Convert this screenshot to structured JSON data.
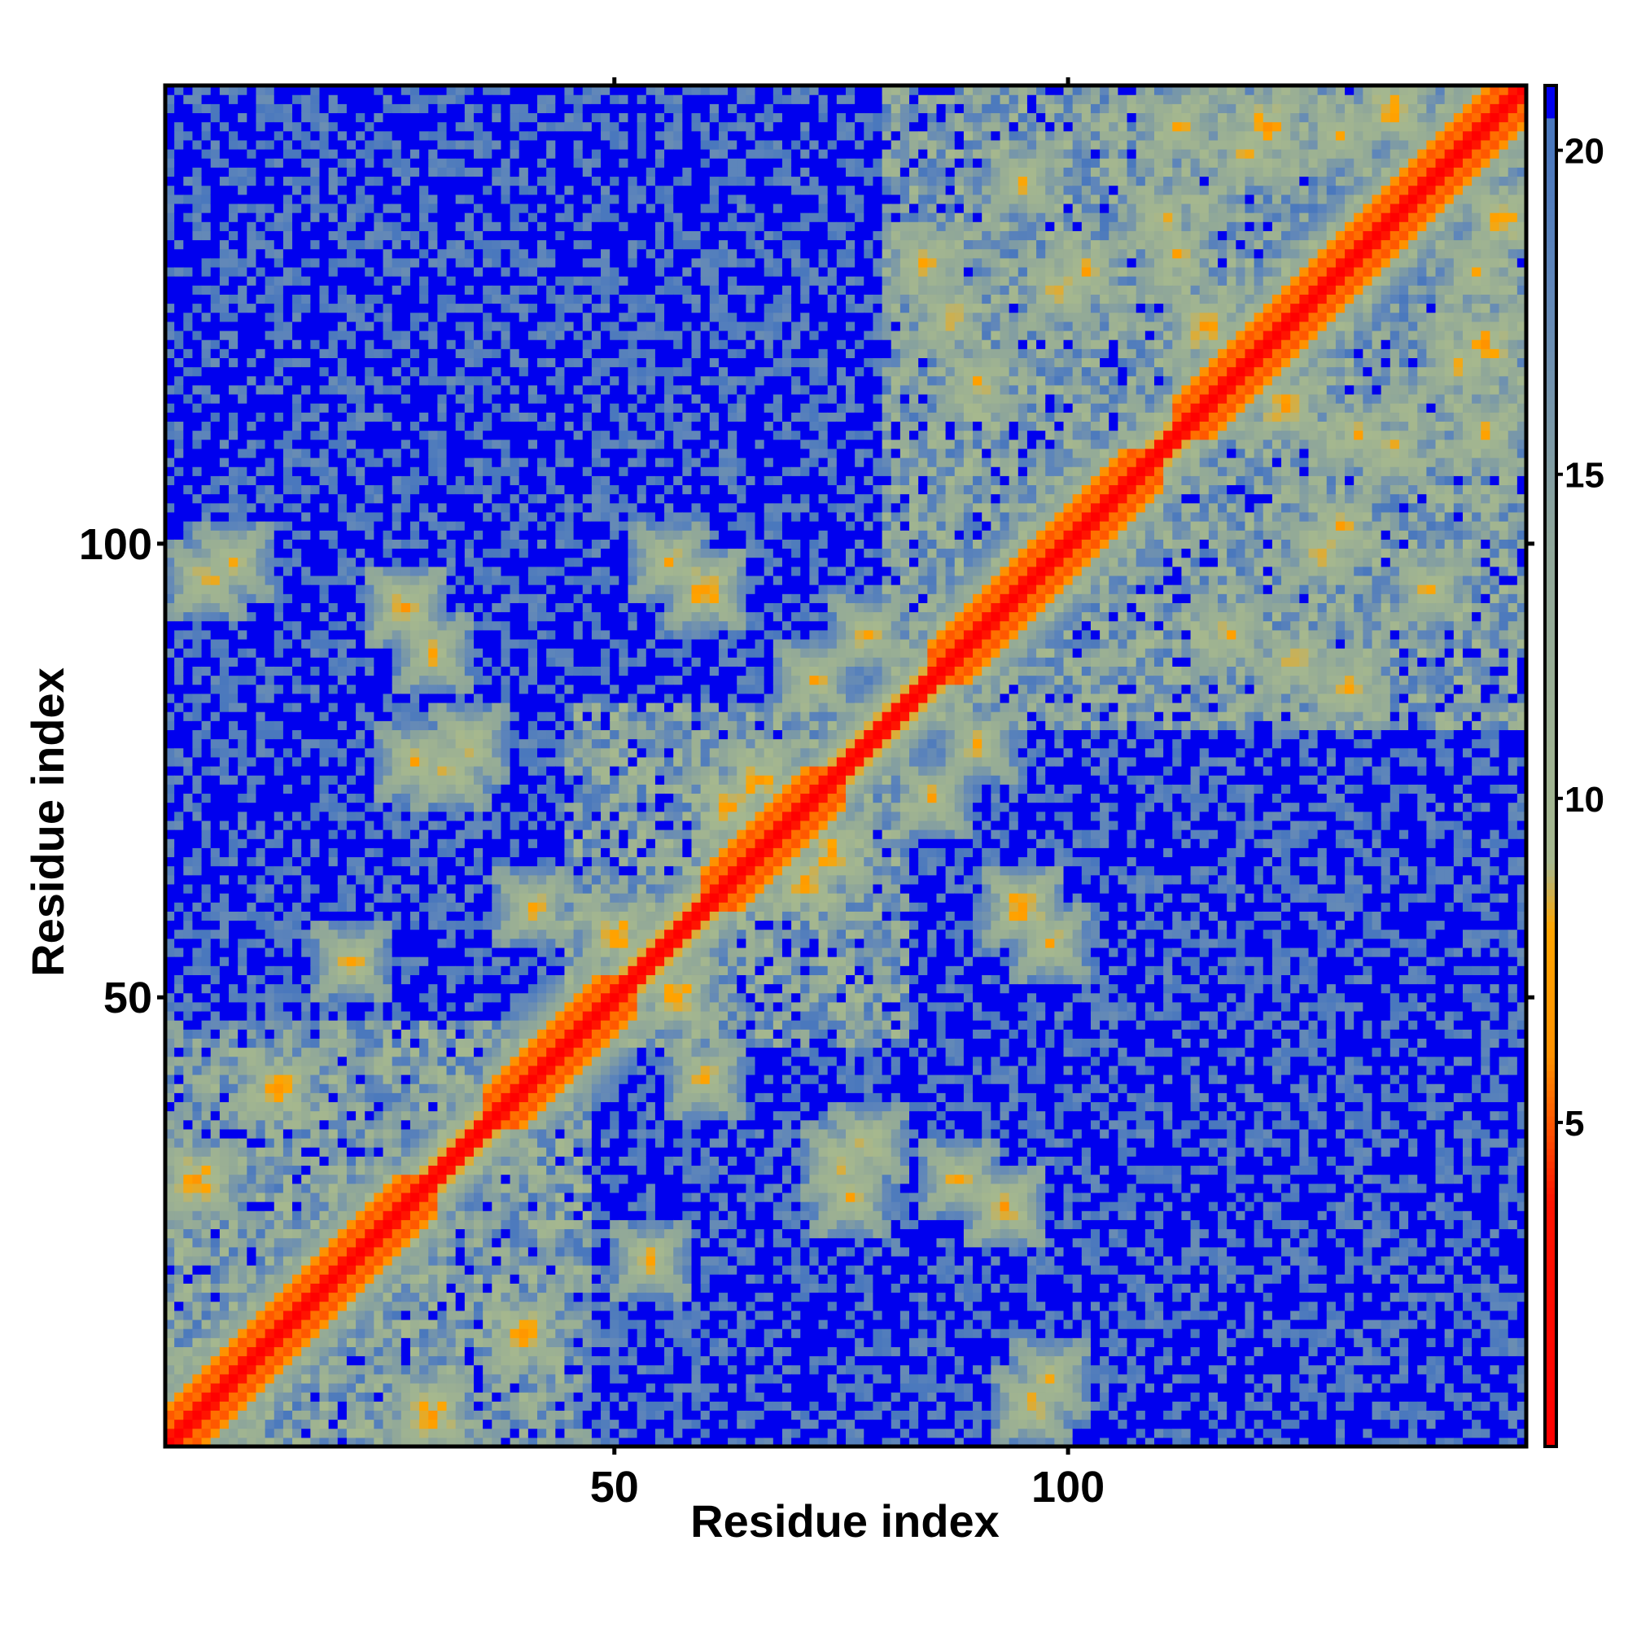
{
  "chart_data": {
    "type": "heatmap",
    "title": "",
    "xlabel": "Residue index",
    "ylabel": "Residue index",
    "xlim": [
      0.5,
      150.5
    ],
    "ylim": [
      0.5,
      150.5
    ],
    "x_ticks": [
      50,
      100
    ],
    "y_ticks": [
      50,
      100
    ],
    "x_tick_labels": [
      "50",
      "100"
    ],
    "y_tick_labels": [
      "50",
      "100"
    ],
    "n_residues": 150,
    "value_description": "inter-residue distance; symmetric about the diagonal",
    "diagonal_value": 0,
    "clip_value": 21,
    "colorbar": {
      "range": [
        0,
        21
      ],
      "ticks": [
        5,
        10,
        15,
        20
      ],
      "tick_labels": [
        "5",
        "10",
        "15",
        "20"
      ],
      "stops": [
        {
          "value": 0,
          "color": "#ff0000"
        },
        {
          "value": 3.8,
          "color": "#ff1400"
        },
        {
          "value": 6,
          "color": "#ff9000"
        },
        {
          "value": 8,
          "color": "#ffa500"
        },
        {
          "value": 9,
          "color": "#a6b88e"
        },
        {
          "value": 14,
          "color": "#8ea69a"
        },
        {
          "value": 18,
          "color": "#5f86ba"
        },
        {
          "value": 20,
          "color": "#4a78bd"
        },
        {
          "value": 21,
          "color": "#0000ee"
        }
      ]
    },
    "grid": false,
    "legend": "colorbar right",
    "dense_domains": [
      {
        "start": 1,
        "end": 47
      },
      {
        "start": 45,
        "end": 82
      },
      {
        "start": 80,
        "end": 150
      }
    ],
    "helical_segments": [
      {
        "start": 1,
        "end": 30
      },
      {
        "start": 36,
        "end": 52
      },
      {
        "start": 60,
        "end": 75
      },
      {
        "start": 85,
        "end": 110
      },
      {
        "start": 112,
        "end": 150
      }
    ],
    "long_range_contacts": [
      {
        "i": 5,
        "j": 96,
        "d": 7
      },
      {
        "i": 8,
        "j": 98,
        "d": 7
      },
      {
        "i": 27,
        "j": 93,
        "d": 6
      },
      {
        "i": 30,
        "j": 88,
        "d": 7
      },
      {
        "i": 13,
        "j": 40,
        "d": 6
      },
      {
        "i": 5,
        "j": 29,
        "d": 7
      },
      {
        "i": 28,
        "j": 76,
        "d": 7
      },
      {
        "i": 32,
        "j": 75,
        "d": 7
      },
      {
        "i": 34,
        "j": 78,
        "d": 7
      },
      {
        "i": 4,
        "j": 30,
        "d": 6
      },
      {
        "i": 56,
        "j": 98,
        "d": 7
      },
      {
        "i": 60,
        "j": 95,
        "d": 6
      },
      {
        "i": 110,
        "j": 136,
        "d": 7
      },
      {
        "i": 112,
        "j": 132,
        "d": 7
      },
      {
        "i": 115,
        "j": 124,
        "d": 6
      },
      {
        "i": 102,
        "j": 130,
        "d": 7
      },
      {
        "i": 120,
        "j": 143,
        "d": 7
      },
      {
        "i": 122,
        "j": 146,
        "d": 6
      },
      {
        "i": 130,
        "j": 145,
        "d": 7
      },
      {
        "i": 87,
        "j": 125,
        "d": 7
      },
      {
        "i": 90,
        "j": 118,
        "d": 7
      },
      {
        "i": 78,
        "j": 90,
        "d": 7
      },
      {
        "i": 72,
        "j": 85,
        "d": 7
      },
      {
        "i": 66,
        "j": 74,
        "d": 6
      },
      {
        "i": 50,
        "j": 57,
        "d": 6
      },
      {
        "i": 63,
        "j": 71,
        "d": 6
      },
      {
        "i": 41,
        "j": 60,
        "d": 7
      },
      {
        "i": 21,
        "j": 54,
        "d": 7
      },
      {
        "i": 140,
        "j": 95,
        "d": 7
      },
      {
        "i": 128,
        "j": 99,
        "d": 7
      },
      {
        "i": 131,
        "j": 84,
        "d": 7
      },
      {
        "i": 136,
        "j": 148,
        "d": 6
      },
      {
        "i": 146,
        "j": 112,
        "d": 7
      }
    ]
  }
}
